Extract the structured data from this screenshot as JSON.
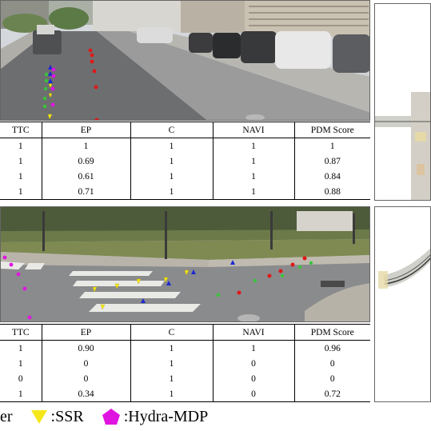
{
  "columns": [
    "TTC",
    "EP",
    "C",
    "NAVI",
    "PDM Score"
  ],
  "top_table": {
    "rows": [
      [
        "1",
        "1",
        "1",
        "1",
        "1"
      ],
      [
        "1",
        "0.69",
        "1",
        "1",
        "0.87"
      ],
      [
        "1",
        "0.61",
        "1",
        "1",
        "0.84"
      ],
      [
        "1",
        "0.71",
        "1",
        "1",
        "0.88"
      ]
    ]
  },
  "bottom_table": {
    "rows": [
      [
        "1",
        "0.90",
        "1",
        "1",
        "0.96"
      ],
      [
        "1",
        "0",
        "1",
        "0",
        "0"
      ],
      [
        "0",
        "0",
        "1",
        "0",
        "0"
      ],
      [
        "1",
        "0.34",
        "1",
        "0",
        "0.72"
      ]
    ]
  },
  "legend": {
    "item1": "er",
    "item2": ":SSR",
    "item3": ":Hydra-MDP"
  },
  "colors": {
    "red": "#e01818",
    "green": "#3ac43a",
    "blue": "#1e2ad0",
    "yellow": "#f4e81a",
    "magenta": "#e014e0"
  }
}
